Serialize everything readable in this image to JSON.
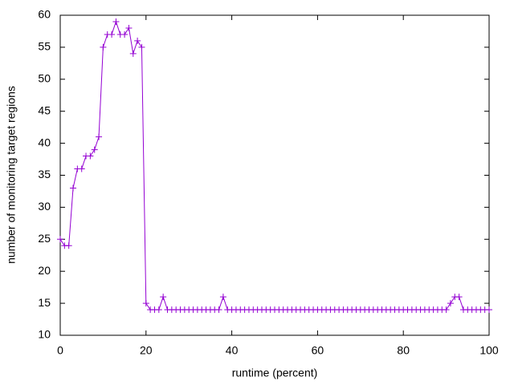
{
  "chart_data": {
    "type": "line",
    "xlabel": "runtime (percent)",
    "ylabel": "number of monitoring target regions",
    "x": [
      0,
      1,
      2,
      3,
      4,
      5,
      6,
      7,
      8,
      9,
      10,
      11,
      12,
      13,
      14,
      15,
      16,
      17,
      18,
      19,
      20,
      21,
      22,
      23,
      24,
      25,
      26,
      27,
      28,
      29,
      30,
      31,
      32,
      33,
      34,
      35,
      36,
      37,
      38,
      39,
      40,
      41,
      42,
      43,
      44,
      45,
      46,
      47,
      48,
      49,
      50,
      51,
      52,
      53,
      54,
      55,
      56,
      57,
      58,
      59,
      60,
      61,
      62,
      63,
      64,
      65,
      66,
      67,
      68,
      69,
      70,
      71,
      72,
      73,
      74,
      75,
      76,
      77,
      78,
      79,
      80,
      81,
      82,
      83,
      84,
      85,
      86,
      87,
      88,
      89,
      90,
      91,
      92,
      93,
      94,
      95,
      96,
      97,
      98,
      99,
      100
    ],
    "values": [
      25,
      24,
      24,
      33,
      36,
      36,
      38,
      38,
      39,
      41,
      55,
      57,
      57,
      59,
      57,
      57,
      58,
      54,
      56,
      55,
      15,
      14,
      14,
      14,
      16,
      14,
      14,
      14,
      14,
      14,
      14,
      14,
      14,
      14,
      14,
      14,
      14,
      14,
      16,
      14,
      14,
      14,
      14,
      14,
      14,
      14,
      14,
      14,
      14,
      14,
      14,
      14,
      14,
      14,
      14,
      14,
      14,
      14,
      14,
      14,
      14,
      14,
      14,
      14,
      14,
      14,
      14,
      14,
      14,
      14,
      14,
      14,
      14,
      14,
      14,
      14,
      14,
      14,
      14,
      14,
      14,
      14,
      14,
      14,
      14,
      14,
      14,
      14,
      14,
      14,
      14,
      15,
      16,
      16,
      14,
      14,
      14,
      14,
      14,
      14,
      14
    ],
    "color": "#9400d3",
    "marker": "+",
    "xlim": [
      0,
      100
    ],
    "ylim": [
      10,
      60
    ],
    "xticks": [
      0,
      20,
      40,
      60,
      80,
      100
    ],
    "yticks": [
      10,
      15,
      20,
      25,
      30,
      35,
      40,
      45,
      50,
      55,
      60
    ],
    "grid": false
  }
}
